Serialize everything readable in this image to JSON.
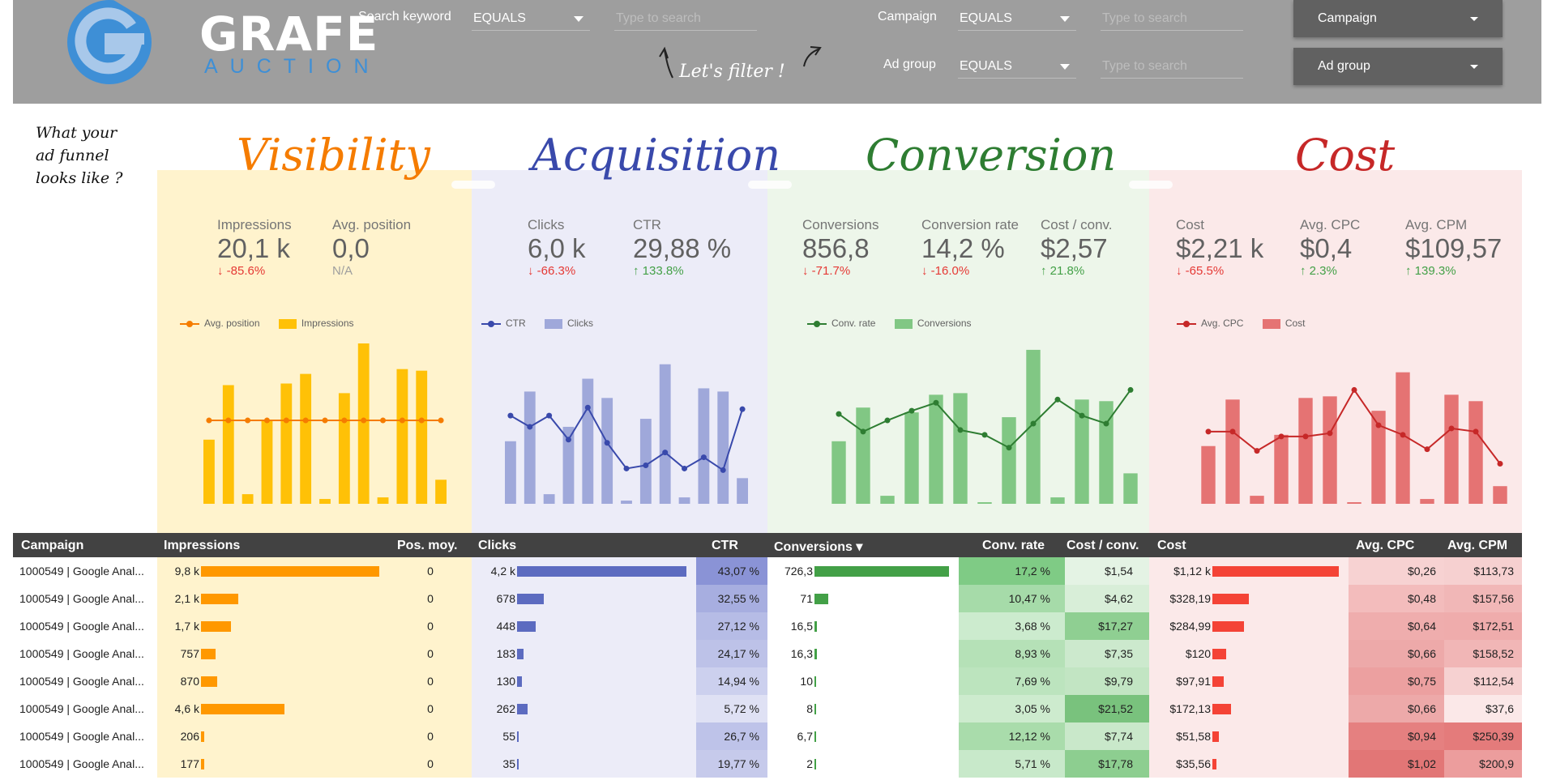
{
  "header": {
    "brand_top": "GRAFE",
    "brand_bottom": "AUCTION",
    "filters": {
      "search_keyword": {
        "label": "Search keyword",
        "operator": "EQUALS",
        "placeholder": "Type to search"
      },
      "campaign": {
        "label": "Campaign",
        "operator": "EQUALS",
        "placeholder": "Type to search"
      },
      "ad_group": {
        "label": "Ad group",
        "operator": "EQUALS",
        "placeholder": "Type to search"
      }
    },
    "campaign_dropdown": "Campaign",
    "adgroup_dropdown": "Ad group",
    "filter_note": "Let's filter !"
  },
  "side_note": [
    "What your",
    "ad funnel",
    "looks like ?"
  ],
  "colors": {
    "visibility_bg": "#fff3cd",
    "acquisition_bg": "#ececf8",
    "conversion_bg": "#edf6ea",
    "cost_bg": "#fbe9e9",
    "visibility_accent": "#f57c00",
    "acquisition_accent": "#3949ab",
    "conversion_accent": "#2e7d32",
    "cost_accent": "#c62828"
  },
  "stages": {
    "visibility": {
      "title": "Visibility",
      "kpis": [
        {
          "label": "Impressions",
          "value": "20,1 k",
          "delta": "↓ -85.6%",
          "dir": "down"
        },
        {
          "label": "Avg. position",
          "value": "0,0",
          "delta": "N/A",
          "dir": "na"
        }
      ],
      "legend_line": "Avg. position",
      "legend_bar": "Impressions"
    },
    "acquisition": {
      "title": "Acquisition",
      "kpis": [
        {
          "label": "Clicks",
          "value": "6,0 k",
          "delta": "↓ -66.3%",
          "dir": "down"
        },
        {
          "label": "CTR",
          "value": "29,88 %",
          "delta": "↑ 133.8%",
          "dir": "up"
        }
      ],
      "legend_line": "CTR",
      "legend_bar": "Clicks"
    },
    "conversion": {
      "title": "Conversion",
      "kpis": [
        {
          "label": "Conversions",
          "value": "856,8",
          "delta": "↓ -71.7%",
          "dir": "down"
        },
        {
          "label": "Conversion rate",
          "value": "14,2 %",
          "delta": "↓ -16.0%",
          "dir": "down"
        },
        {
          "label": "Cost / conv.",
          "value": "$2,57",
          "delta": "↑ 21.8%",
          "dir": "up"
        }
      ],
      "legend_line": "Conv. rate",
      "legend_bar": "Conversions"
    },
    "cost": {
      "title": "Cost",
      "kpis": [
        {
          "label": "Cost",
          "value": "$2,21 k",
          "delta": "↓ -65.5%",
          "dir": "down"
        },
        {
          "label": "Avg. CPC",
          "value": "$0,4",
          "delta": "↑ 2.3%",
          "dir": "up"
        },
        {
          "label": "Avg. CPM",
          "value": "$109,57",
          "delta": "↑ 139.3%",
          "dir": "up"
        }
      ],
      "legend_line": "Avg. CPC",
      "legend_bar": "Cost"
    }
  },
  "chart_data": [
    {
      "type": "bar",
      "title": "",
      "series": [
        {
          "name": "Impressions",
          "kind": "bar",
          "values": [
            0.4,
            0.74,
            0.06,
            0.52,
            0.75,
            0.81,
            0.03,
            0.69,
            1.0,
            0.04,
            0.84,
            0.83,
            0.15
          ]
        },
        {
          "name": "Avg. position",
          "kind": "line",
          "values": [
            0.52,
            0.52,
            0.52,
            0.52,
            0.52,
            0.52,
            0.52,
            0.52,
            0.52,
            0.52,
            0.52,
            0.52,
            0.52
          ]
        }
      ]
    },
    {
      "type": "bar",
      "title": "",
      "series": [
        {
          "name": "Clicks",
          "kind": "bar",
          "values": [
            0.39,
            0.7,
            0.06,
            0.48,
            0.78,
            0.66,
            0.02,
            0.53,
            0.87,
            0.04,
            0.72,
            0.7,
            0.16
          ]
        },
        {
          "name": "CTR",
          "kind": "line",
          "values": [
            0.55,
            0.48,
            0.55,
            0.4,
            0.6,
            0.38,
            0.22,
            0.24,
            0.32,
            0.22,
            0.29,
            0.21,
            0.59
          ]
        }
      ]
    },
    {
      "type": "bar",
      "title": "",
      "series": [
        {
          "name": "Conversions",
          "kind": "bar",
          "values": [
            0.39,
            0.6,
            0.05,
            0.57,
            0.68,
            0.69,
            0.01,
            0.54,
            0.96,
            0.04,
            0.65,
            0.64,
            0.19
          ]
        },
        {
          "name": "Conv. rate",
          "kind": "line",
          "values": [
            0.56,
            0.45,
            0.52,
            0.58,
            0.63,
            0.46,
            0.43,
            0.35,
            0.5,
            0.65,
            0.55,
            0.5,
            0.71
          ]
        }
      ]
    },
    {
      "type": "bar",
      "title": "",
      "series": [
        {
          "name": "Cost",
          "kind": "bar",
          "values": [
            0.36,
            0.65,
            0.05,
            0.43,
            0.66,
            0.67,
            0.01,
            0.58,
            0.82,
            0.03,
            0.68,
            0.64,
            0.11
          ]
        },
        {
          "name": "Avg. CPC",
          "kind": "line",
          "values": [
            0.45,
            0.45,
            0.33,
            0.42,
            0.42,
            0.44,
            0.71,
            0.49,
            0.43,
            0.34,
            0.47,
            0.45,
            0.25
          ]
        }
      ]
    }
  ],
  "table": {
    "headers": [
      "Campaign",
      "Impressions",
      "Pos. moy.",
      "Clicks",
      "CTR",
      "Conversions ▾",
      "Conv. rate",
      "Cost / conv.",
      "Cost",
      "Avg. CPC",
      "Avg. CPM"
    ],
    "rows": [
      {
        "campaign": "1000549 | Google Anal...",
        "impressions": "9,8 k",
        "imp_ratio": 1.0,
        "pos": "0",
        "clicks": "4,2 k",
        "clk_ratio": 1.0,
        "ctr": "43,07 %",
        "conversions": "726,3",
        "conv_ratio": 1.0,
        "conv_rate": "17,2 %",
        "cost_conv": "$1,54",
        "cost": "$1,12 k",
        "cost_ratio": 1.0,
        "cpc": "$0,26",
        "cpm": "$113,73"
      },
      {
        "campaign": "1000549 | Google Anal...",
        "impressions": "2,1 k",
        "imp_ratio": 0.21,
        "pos": "0",
        "clicks": "678",
        "clk_ratio": 0.16,
        "ctr": "32,55 %",
        "conversions": "71",
        "conv_ratio": 0.1,
        "conv_rate": "10,47 %",
        "cost_conv": "$4,62",
        "cost": "$328,19",
        "cost_ratio": 0.29,
        "cpc": "$0,48",
        "cpm": "$157,56"
      },
      {
        "campaign": "1000549 | Google Anal...",
        "impressions": "1,7 k",
        "imp_ratio": 0.17,
        "pos": "0",
        "clicks": "448",
        "clk_ratio": 0.11,
        "ctr": "27,12 %",
        "conversions": "16,5",
        "conv_ratio": 0.02,
        "conv_rate": "3,68 %",
        "cost_conv": "$17,27",
        "cost": "$284,99",
        "cost_ratio": 0.25,
        "cpc": "$0,64",
        "cpm": "$172,51"
      },
      {
        "campaign": "1000549 | Google Anal...",
        "impressions": "757",
        "imp_ratio": 0.08,
        "pos": "0",
        "clicks": "183",
        "clk_ratio": 0.04,
        "ctr": "24,17 %",
        "conversions": "16,3",
        "conv_ratio": 0.02,
        "conv_rate": "8,93 %",
        "cost_conv": "$7,35",
        "cost": "$120",
        "cost_ratio": 0.11,
        "cpc": "$0,66",
        "cpm": "$158,52"
      },
      {
        "campaign": "1000549 | Google Anal...",
        "impressions": "870",
        "imp_ratio": 0.09,
        "pos": "0",
        "clicks": "130",
        "clk_ratio": 0.03,
        "ctr": "14,94 %",
        "conversions": "10",
        "conv_ratio": 0.01,
        "conv_rate": "7,69 %",
        "cost_conv": "$9,79",
        "cost": "$97,91",
        "cost_ratio": 0.09,
        "cpc": "$0,75",
        "cpm": "$112,54"
      },
      {
        "campaign": "1000549 | Google Anal...",
        "impressions": "4,6 k",
        "imp_ratio": 0.47,
        "pos": "0",
        "clicks": "262",
        "clk_ratio": 0.06,
        "ctr": "5,72 %",
        "conversions": "8",
        "conv_ratio": 0.01,
        "conv_rate": "3,05 %",
        "cost_conv": "$21,52",
        "cost": "$172,13",
        "cost_ratio": 0.15,
        "cpc": "$0,66",
        "cpm": "$37,6"
      },
      {
        "campaign": "1000549 | Google Anal...",
        "impressions": "206",
        "imp_ratio": 0.02,
        "pos": "0",
        "clicks": "55",
        "clk_ratio": 0.01,
        "ctr": "26,7 %",
        "conversions": "6,7",
        "conv_ratio": 0.01,
        "conv_rate": "12,12 %",
        "cost_conv": "$7,74",
        "cost": "$51,58",
        "cost_ratio": 0.05,
        "cpc": "$0,94",
        "cpm": "$250,39"
      },
      {
        "campaign": "1000549 | Google Anal...",
        "impressions": "177",
        "imp_ratio": 0.02,
        "pos": "0",
        "clicks": "35",
        "clk_ratio": 0.01,
        "ctr": "19,77 %",
        "conversions": "2",
        "conv_ratio": 0.0,
        "conv_rate": "5,71 %",
        "cost_conv": "$17,78",
        "cost": "$35,56",
        "cost_ratio": 0.03,
        "cpc": "$1,02",
        "cpm": "$200,9"
      }
    ]
  }
}
